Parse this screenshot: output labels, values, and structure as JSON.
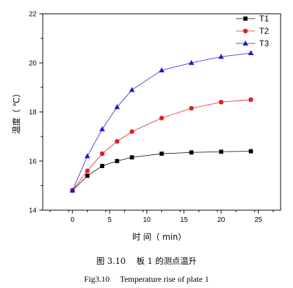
{
  "chart_data": {
    "type": "line",
    "xlabel": "时 间（ min）",
    "ylabel": "温度（ ℃）",
    "xlim": [
      -4,
      28
    ],
    "ylim": [
      14,
      22
    ],
    "xticks": [
      0,
      5,
      10,
      15,
      20,
      25
    ],
    "yticks": [
      14,
      16,
      18,
      20,
      22
    ],
    "legend_position": "top-right",
    "grid": false,
    "x": [
      0,
      2,
      4,
      6,
      8,
      12,
      16,
      20,
      24
    ],
    "series": [
      {
        "name": "T1",
        "color": "#000000",
        "marker": "square",
        "values": [
          14.8,
          15.4,
          15.8,
          16.0,
          16.15,
          16.3,
          16.35,
          16.38,
          16.4
        ]
      },
      {
        "name": "T2",
        "color": "#e02020",
        "marker": "circle",
        "values": [
          14.8,
          15.6,
          16.3,
          16.8,
          17.2,
          17.75,
          18.15,
          18.4,
          18.5
        ]
      },
      {
        "name": "T3",
        "color": "#1a1acc",
        "marker": "triangle",
        "values": [
          14.8,
          16.2,
          17.3,
          18.2,
          18.9,
          19.7,
          20.0,
          20.25,
          20.4
        ]
      }
    ]
  },
  "caption": {
    "cn": "图 3.10　 板 1 的测点温升",
    "en": "Fig3.10　 Temperature rise of plate 1"
  }
}
